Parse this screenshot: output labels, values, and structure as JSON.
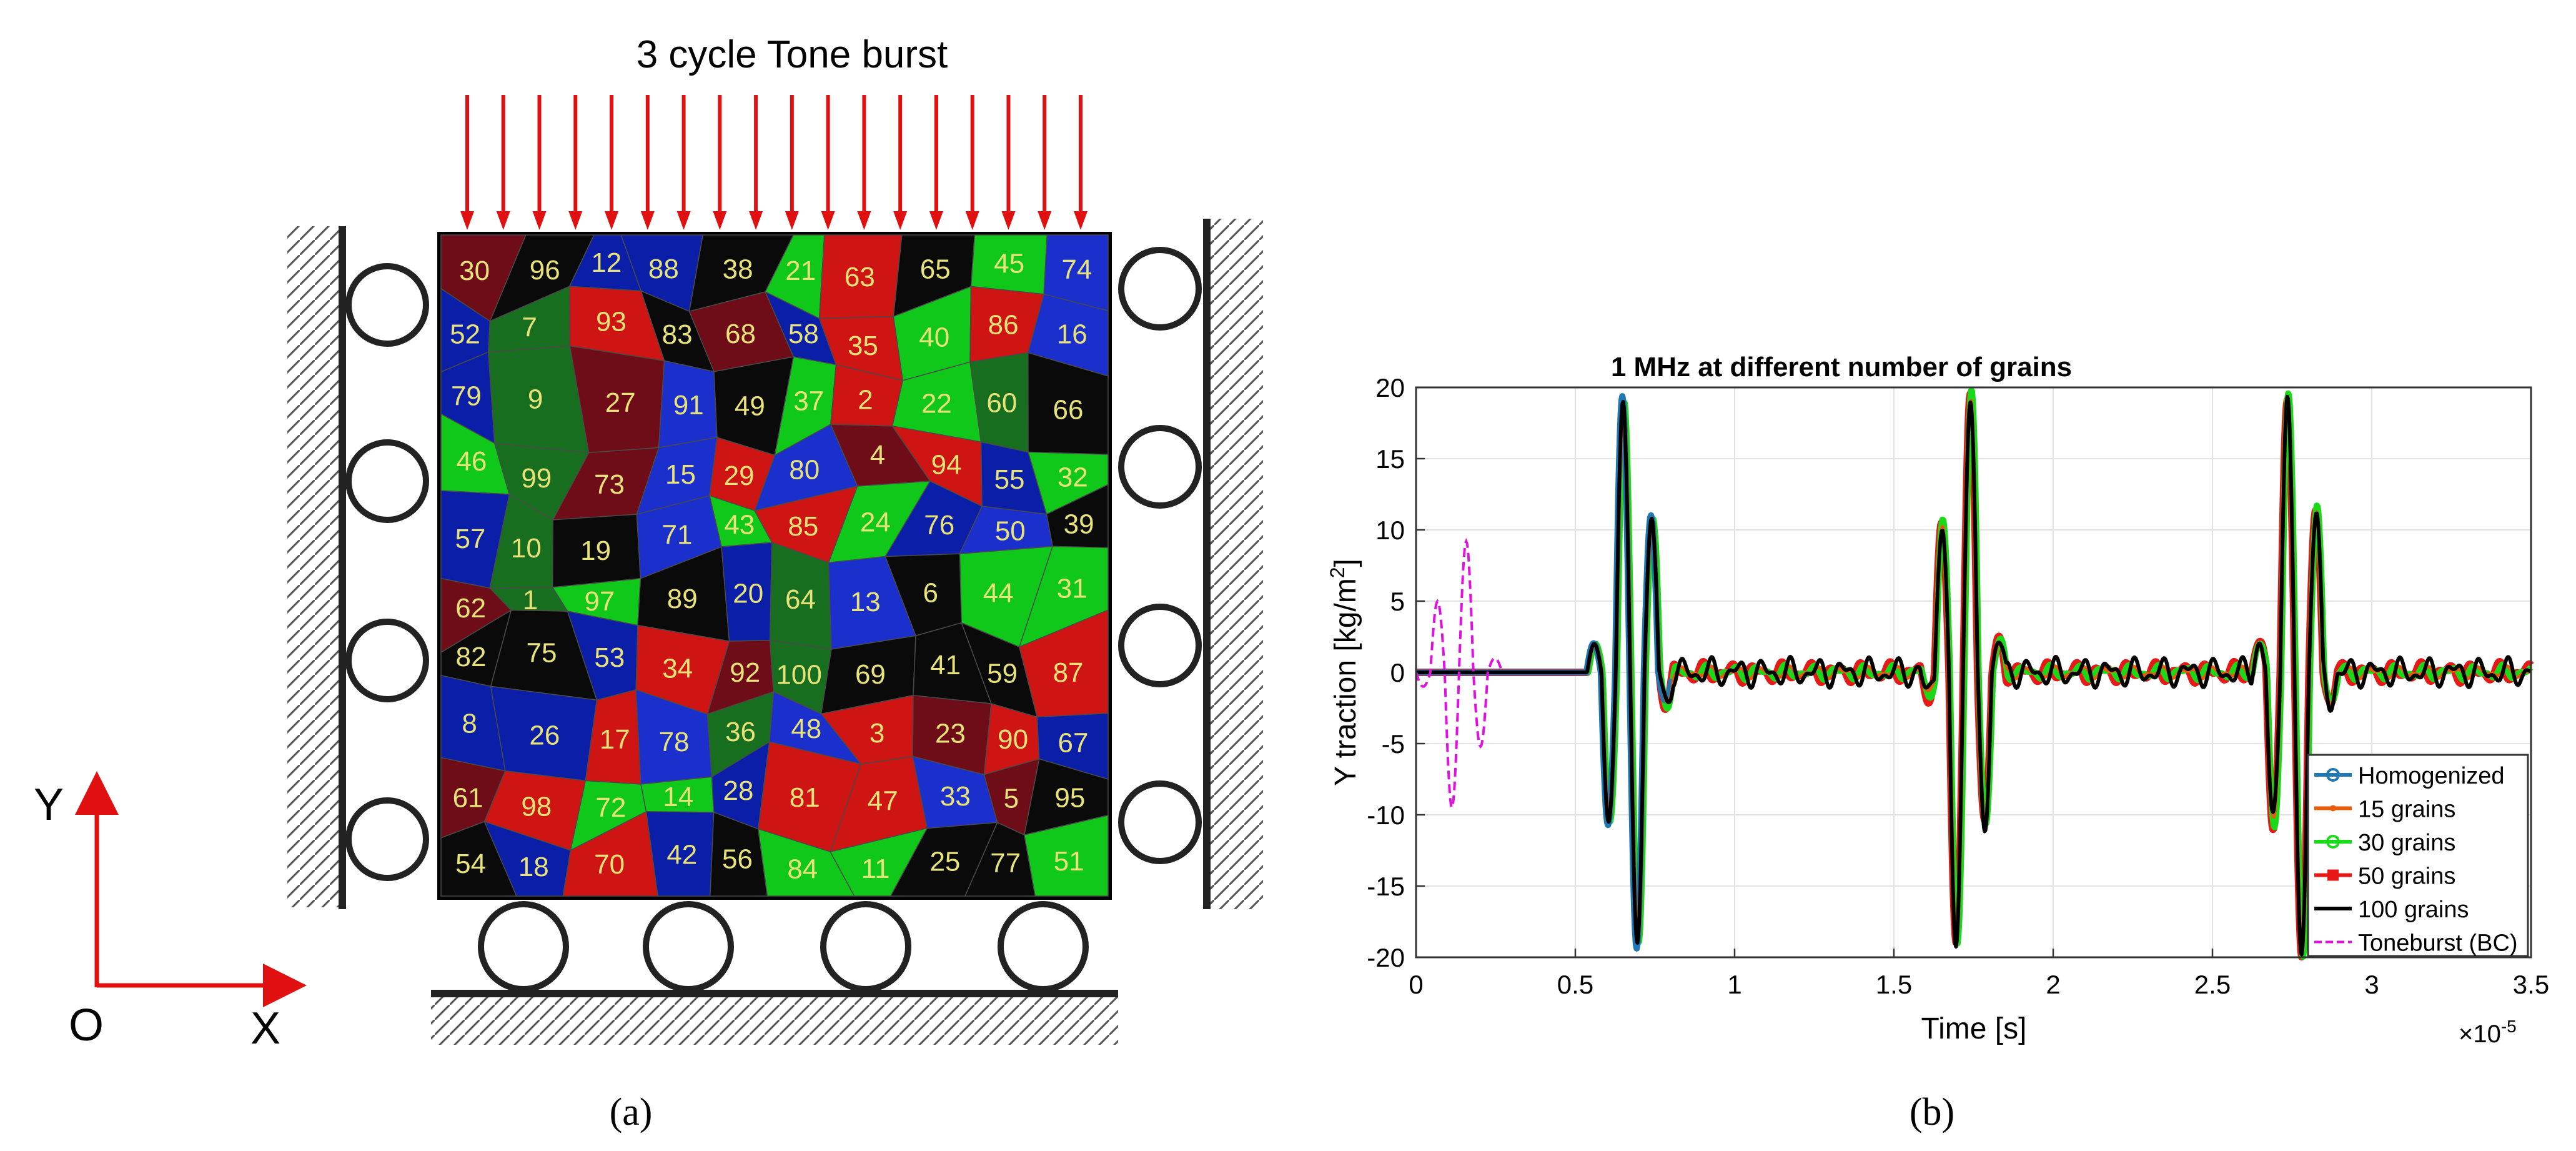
{
  "panel_a": {
    "title": "3 cycle Tone burst",
    "caption": "(a)",
    "axis_y_label": "Y",
    "axis_x_label": "X",
    "origin_label": "O",
    "grain_colors": [
      "#0a1ea8",
      "#10c81a",
      "#cf1414",
      "#0a0a0a",
      "#176e1f",
      "#6e0d18",
      "#1a2fcc"
    ],
    "grain_label_color": "#e8e27a",
    "grain_labels": [
      "30",
      "96",
      "12",
      "88",
      "38",
      "21",
      "63",
      "65",
      "45",
      "74",
      "52",
      "7",
      "93",
      "83",
      "68",
      "58",
      "35",
      "40",
      "86",
      "16",
      "79",
      "9",
      "27",
      "91",
      "49",
      "37",
      "2",
      "22",
      "60",
      "66",
      "46",
      "99",
      "73",
      "15",
      "29",
      "80",
      "4",
      "94",
      "55",
      "32",
      "57",
      "10",
      "19",
      "71",
      "43",
      "85",
      "24",
      "76",
      "50",
      "39",
      "62",
      "1",
      "97",
      "89",
      "20",
      "64",
      "13",
      "6",
      "44",
      "31",
      "82",
      "75",
      "53",
      "34",
      "92",
      "100",
      "69",
      "41",
      "59",
      "87",
      "8",
      "26",
      "17",
      "78",
      "36",
      "48",
      "3",
      "23",
      "90",
      "67",
      "61",
      "98",
      "72",
      "14",
      "28",
      "81",
      "47",
      "33",
      "5",
      "95",
      "54",
      "18",
      "70",
      "42",
      "56",
      "84",
      "11",
      "25",
      "77",
      "51"
    ],
    "arrow_color": "#e01010"
  },
  "panel_b": {
    "caption": "(b)",
    "exponent_label": "×10",
    "exponent_power": "-5"
  },
  "chart_data": {
    "type": "line",
    "title": "1 MHz at different number of grains",
    "xlabel": "Time [s]",
    "ylabel": "Y traction [kg/m",
    "ylabel_sup": "2",
    "ylabel_end": "]",
    "xlim": [
      0,
      3.5
    ],
    "ylim": [
      -20,
      20
    ],
    "x_scale_note": "x values in units of 1e-5 s",
    "xticks": [
      "0",
      "0.5",
      "1",
      "1.5",
      "2",
      "2.5",
      "3",
      "3.5"
    ],
    "yticks": [
      "-20",
      "-15",
      "-10",
      "-5",
      "0",
      "5",
      "10",
      "15",
      "20"
    ],
    "grid": true,
    "legend_position": "bottom-right",
    "packets": [
      {
        "t_start": 0.535,
        "peaks": [
          2.0,
          -10.5,
          19.0,
          -19.0,
          10.8,
          -2.0
        ]
      },
      {
        "t_start": 1.58,
        "peaks": [
          -1.5,
          10.3,
          -19.0,
          19.3,
          -10.5,
          2.0
        ]
      },
      {
        "t_start": 2.62,
        "peaks": [
          2.0,
          -10.5,
          19.3,
          -19.8,
          11.2,
          -2.0
        ]
      }
    ],
    "toneburst_peaks": [
      -1.0,
      5.0,
      -9.5,
      9.2,
      -5.2,
      1.0
    ],
    "series": [
      {
        "name": "Homogenized",
        "color": "#1f77b4",
        "marker": "circle"
      },
      {
        "name": "15 grains",
        "color": "#e85d0c",
        "marker": "dot"
      },
      {
        "name": "30 grains",
        "color": "#19d919",
        "marker": "circle"
      },
      {
        "name": "50 grains",
        "color": "#e81818",
        "marker": "square"
      },
      {
        "name": "100 grains",
        "color": "#000000",
        "marker": "none"
      },
      {
        "name": "Toneburst (BC)",
        "color": "#e010e0",
        "marker": "none",
        "dashed": true
      }
    ]
  }
}
